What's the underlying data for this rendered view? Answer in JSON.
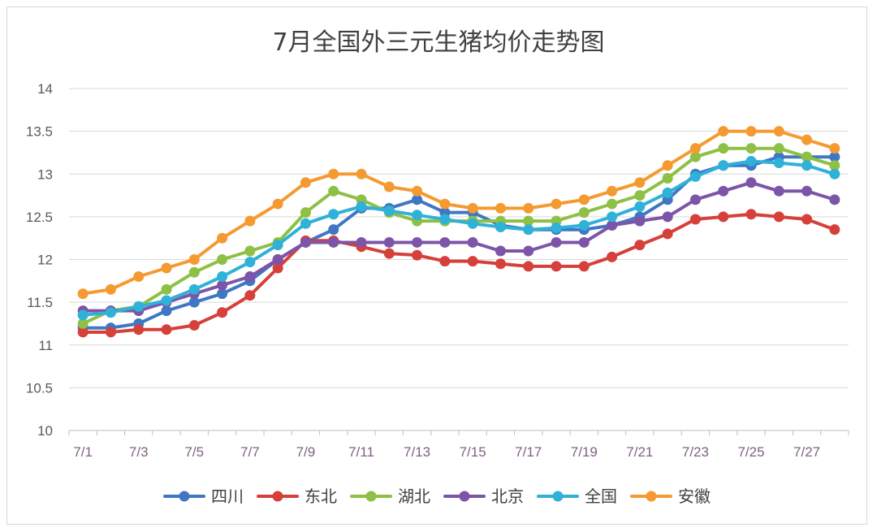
{
  "chart_data": {
    "type": "line",
    "title": "7月全国外三元生猪均价走势图",
    "xlabel": "",
    "ylabel": "",
    "ylim": [
      10,
      14
    ],
    "ytick_step": 0.5,
    "yticks": [
      "10",
      "10.5",
      "11",
      "11.5",
      "12",
      "12.5",
      "13",
      "13.5",
      "14"
    ],
    "x": [
      1,
      2,
      3,
      4,
      5,
      6,
      7,
      8,
      9,
      10,
      11,
      12,
      13,
      14,
      15,
      16,
      17,
      18,
      19,
      20,
      21,
      22,
      23,
      24,
      25,
      26,
      27,
      28
    ],
    "xticks": [
      "7/1",
      "7/3",
      "7/5",
      "7/7",
      "7/9",
      "7/11",
      "7/13",
      "7/15",
      "7/17",
      "7/19",
      "7/21",
      "7/23",
      "7/25",
      "7/27"
    ],
    "xtick_days": [
      1,
      3,
      5,
      7,
      9,
      11,
      13,
      15,
      17,
      19,
      21,
      23,
      25,
      27
    ],
    "grid": "horizontal",
    "legend_position": "bottom",
    "series": [
      {
        "name": "四川",
        "color": "#3f77c4",
        "values": [
          11.2,
          11.2,
          11.25,
          11.4,
          11.5,
          11.6,
          11.75,
          12.0,
          12.2,
          12.35,
          12.6,
          12.6,
          12.7,
          12.55,
          12.55,
          12.4,
          12.35,
          12.35,
          12.35,
          12.4,
          12.5,
          12.7,
          13.0,
          13.1,
          13.1,
          13.2,
          13.2,
          13.2
        ]
      },
      {
        "name": "东北",
        "color": "#d6403a",
        "values": [
          11.15,
          11.15,
          11.18,
          11.18,
          11.23,
          11.38,
          11.58,
          11.9,
          12.22,
          12.22,
          12.15,
          12.07,
          12.05,
          11.98,
          11.98,
          11.95,
          11.92,
          11.92,
          11.92,
          12.03,
          12.17,
          12.3,
          12.47,
          12.5,
          12.53,
          12.5,
          12.47,
          12.35
        ]
      },
      {
        "name": "湖北",
        "color": "#8dc044",
        "values": [
          11.25,
          11.4,
          11.45,
          11.65,
          11.85,
          12.0,
          12.1,
          12.2,
          12.55,
          12.8,
          12.7,
          12.55,
          12.45,
          12.45,
          12.45,
          12.45,
          12.45,
          12.45,
          12.55,
          12.65,
          12.75,
          12.95,
          13.2,
          13.3,
          13.3,
          13.3,
          13.2,
          13.1
        ]
      },
      {
        "name": "北京",
        "color": "#7d55a8",
        "values": [
          11.4,
          11.4,
          11.4,
          11.5,
          11.6,
          11.7,
          11.8,
          12.0,
          12.2,
          12.2,
          12.2,
          12.2,
          12.2,
          12.2,
          12.2,
          12.1,
          12.1,
          12.2,
          12.2,
          12.4,
          12.45,
          12.5,
          12.7,
          12.8,
          12.9,
          12.8,
          12.8,
          12.7
        ]
      },
      {
        "name": "全国",
        "color": "#2fb1d8",
        "values": [
          11.35,
          11.38,
          11.45,
          11.52,
          11.65,
          11.8,
          11.97,
          12.17,
          12.42,
          12.53,
          12.62,
          12.57,
          12.52,
          12.47,
          12.42,
          12.38,
          12.35,
          12.37,
          12.4,
          12.5,
          12.62,
          12.78,
          12.97,
          13.1,
          13.15,
          13.13,
          13.1,
          13.0
        ]
      },
      {
        "name": "安徽",
        "color": "#f59a31",
        "values": [
          11.6,
          11.65,
          11.8,
          11.9,
          12.0,
          12.25,
          12.45,
          12.65,
          12.9,
          13.0,
          13.0,
          12.85,
          12.8,
          12.65,
          12.6,
          12.6,
          12.6,
          12.65,
          12.7,
          12.8,
          12.9,
          13.1,
          13.3,
          13.5,
          13.5,
          13.5,
          13.4,
          13.3
        ]
      }
    ]
  }
}
